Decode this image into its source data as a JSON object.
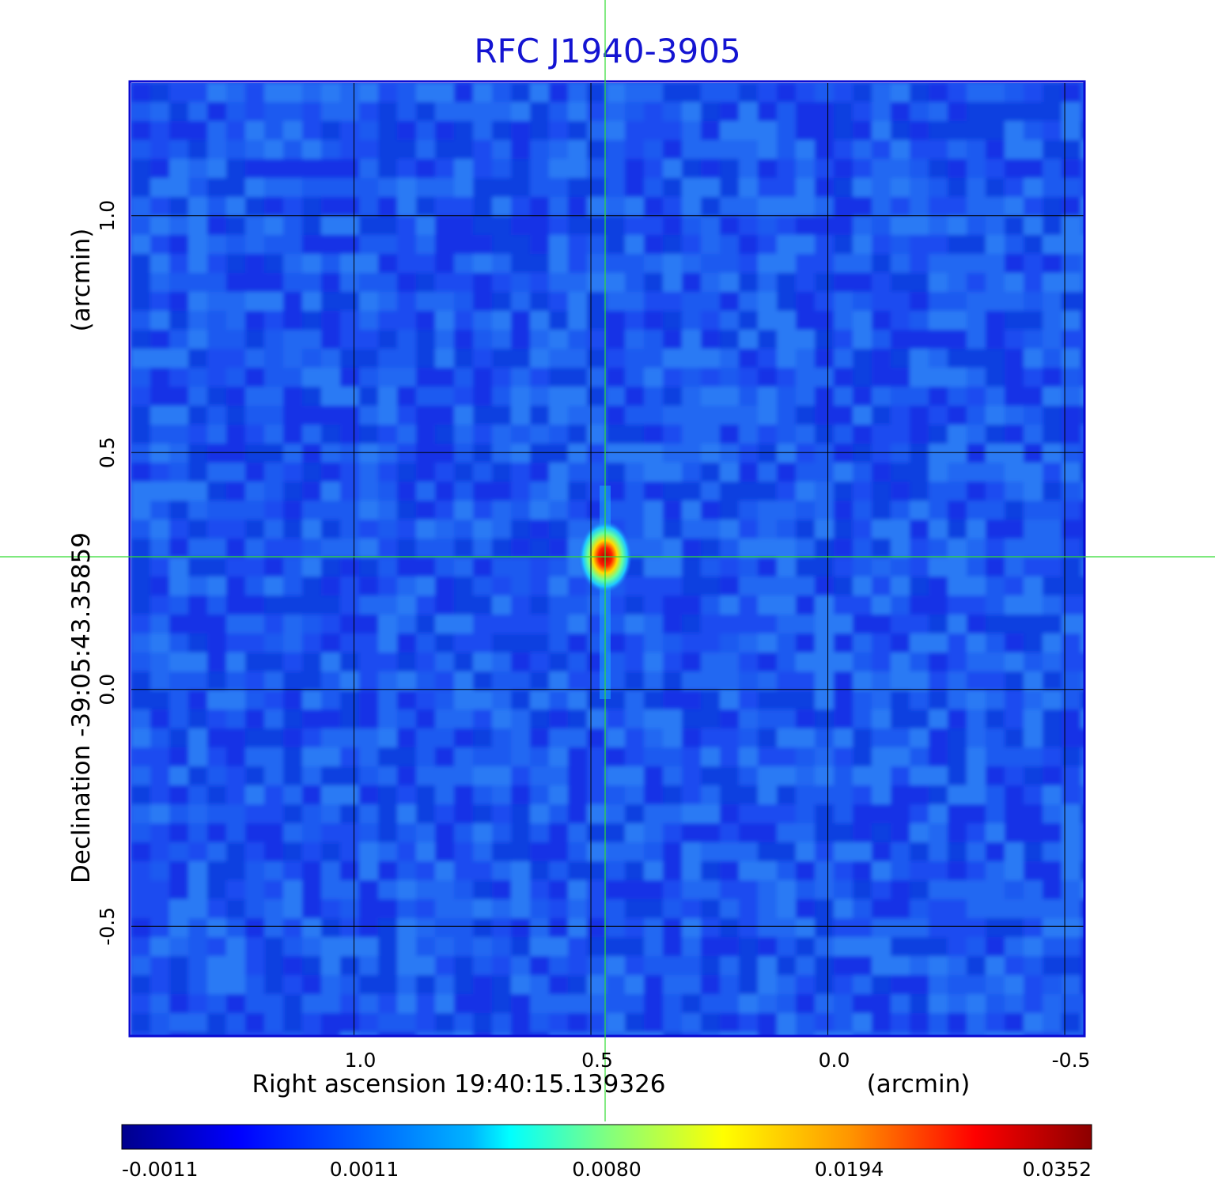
{
  "chart_data": {
    "type": "heatmap",
    "title": "RFC J1940-3905",
    "xlabel": "Right ascension  19:40:15.139326",
    "xlabel_unit": "(arcmin)",
    "ylabel": "Declination  -39:05:43.35859",
    "ylabel_unit": "(arcmin)",
    "x_ticks": [
      1.0,
      0.5,
      0.0,
      -0.5
    ],
    "x_tick_labels": [
      "1.0",
      "0.5",
      "0.0",
      "-0.5"
    ],
    "xlim": [
      1.47,
      -0.54
    ],
    "y_ticks": [
      1.0,
      0.5,
      0.0,
      -0.5
    ],
    "y_tick_labels": [
      "1.0",
      "0.5",
      "0.0",
      "-0.5"
    ],
    "ylim": [
      -0.73,
      1.28
    ],
    "grid": true,
    "colormap": "jet",
    "colorbar_ticks": [
      "-0.0011",
      "0.0011",
      "0.0080",
      "0.0194",
      "0.0352"
    ],
    "colorbar_range": [
      -0.0011,
      0.0352
    ],
    "source_peak": {
      "x": 0.47,
      "y": 0.28,
      "value": 0.0352
    },
    "crosshair": {
      "x": 0.47,
      "y": 0.28
    }
  },
  "colors": {
    "title": "#1414d2",
    "frame": "#0a0ad2",
    "crosshair": "#32dc32",
    "grid": "#000000",
    "background_map": "#1e5af0"
  }
}
